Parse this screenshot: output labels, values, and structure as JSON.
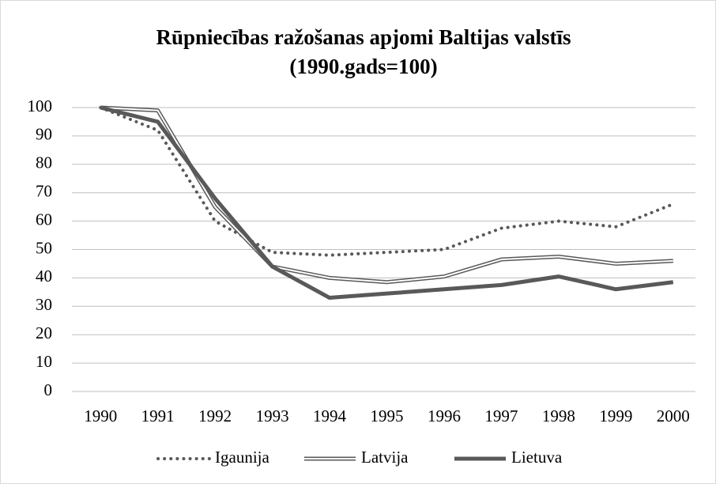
{
  "chart_data": {
    "type": "line",
    "title": "Rūpniecības ražošanas apjomi Baltijas valstīs",
    "subtitle": "(1990.gads=100)",
    "categories": [
      "1990",
      "1991",
      "1992",
      "1993",
      "1994",
      "1995",
      "1996",
      "1997",
      "1998",
      "1999",
      "2000"
    ],
    "series": [
      {
        "name": "Igaunija",
        "color": "#595959",
        "style": "dotted",
        "values": [
          100,
          92,
          60,
          49,
          48,
          49,
          50,
          57.5,
          60,
          58,
          66
        ]
      },
      {
        "name": "Latvija",
        "color": "#595959",
        "style": "double",
        "values": [
          100,
          99,
          65,
          44,
          40,
          38.5,
          40.5,
          46.5,
          47.5,
          45,
          46
        ]
      },
      {
        "name": "Lietuva",
        "color": "#595959",
        "style": "solid",
        "values": [
          100,
          95,
          68,
          44,
          33,
          34.5,
          36,
          37.5,
          40.5,
          36,
          38.5
        ]
      }
    ],
    "ylim": [
      0,
      100
    ],
    "yticks": [
      0,
      10,
      20,
      30,
      40,
      50,
      60,
      70,
      80,
      90,
      100
    ],
    "grid": true,
    "legend": "bottom"
  }
}
